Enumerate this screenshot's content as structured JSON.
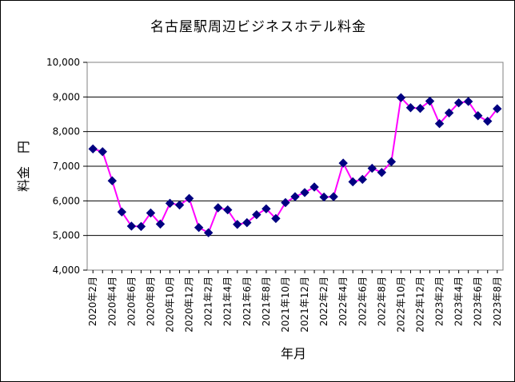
{
  "chart_data": {
    "type": "line",
    "title": "名古屋駅周辺ビジネスホテル料金",
    "xlabel": "年月",
    "ylabel": "料金　円",
    "ylim": [
      4000,
      10000
    ],
    "yticks": [
      4000,
      5000,
      6000,
      7000,
      8000,
      9000,
      10000
    ],
    "ytick_labels": [
      "4,000",
      "5,000",
      "6,000",
      "7,000",
      "8,000",
      "9,000",
      "10,000"
    ],
    "grid": true,
    "line_color": "#ff00ff",
    "marker_color": "#000080",
    "x_labels": [
      "2020年2月",
      "2020年4月",
      "2020年6月",
      "2020年8月",
      "2020年10月",
      "2020年12月",
      "2021年2月",
      "2021年4月",
      "2021年6月",
      "2021年8月",
      "2021年10月",
      "2021年12月",
      "2022年2月",
      "2022年4月",
      "2022年6月",
      "2022年8月",
      "2022年10月",
      "2022年12月",
      "2023年2月",
      "2023年4月",
      "2023年6月",
      "2023年8月"
    ],
    "series": [
      {
        "name": "料金",
        "values": [
          7500,
          7420,
          6580,
          5680,
          5270,
          5260,
          5650,
          5330,
          5930,
          5880,
          6070,
          5230,
          5080,
          5800,
          5740,
          5320,
          5370,
          5600,
          5770,
          5490,
          5950,
          6120,
          6240,
          6400,
          6110,
          6120,
          7090,
          6550,
          6620,
          6940,
          6820,
          7130,
          8980,
          8690,
          8670,
          8880,
          8230,
          8540,
          8830,
          8870,
          8460,
          8300,
          8660
        ]
      }
    ]
  }
}
